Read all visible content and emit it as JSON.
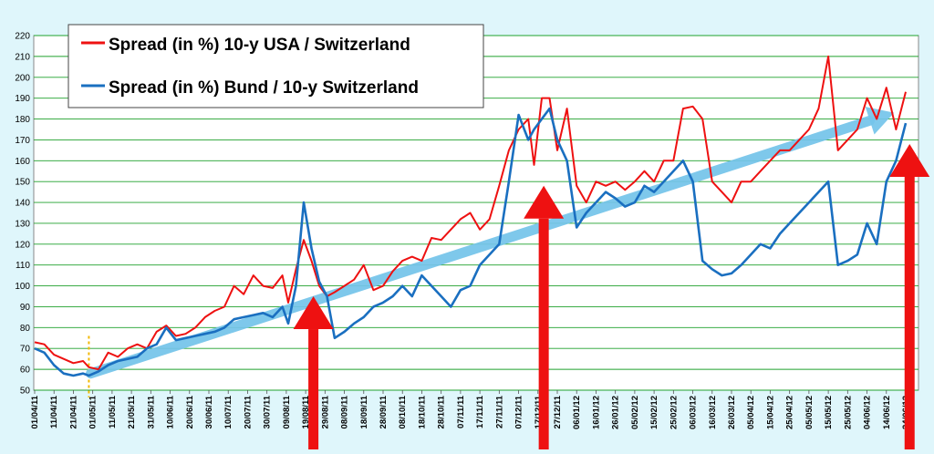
{
  "chart_data": {
    "type": "line",
    "title": "",
    "xlabel": "",
    "ylabel": "",
    "ylim": [
      50,
      220
    ],
    "yticks": [
      50,
      60,
      70,
      80,
      90,
      100,
      110,
      120,
      130,
      140,
      150,
      160,
      170,
      180,
      190,
      200,
      210,
      220
    ],
    "grid": true,
    "legend_position": "top-left",
    "x_tick_labels": [
      "01/04/11",
      "11/04/11",
      "21/04/11",
      "01/05/11",
      "11/05/11",
      "21/05/11",
      "31/05/11",
      "10/06/11",
      "20/06/11",
      "30/06/11",
      "10/07/11",
      "20/07/11",
      "30/07/11",
      "09/08/11",
      "19/08/11",
      "29/08/11",
      "08/09/11",
      "18/09/11",
      "28/09/11",
      "08/10/11",
      "18/10/11",
      "28/10/11",
      "07/11/11",
      "17/11/11",
      "27/11/11",
      "07/12/11",
      "17/12/11",
      "27/12/11",
      "06/01/12",
      "16/01/12",
      "26/01/12",
      "05/02/12",
      "15/02/12",
      "25/02/12",
      "06/03/12",
      "16/03/12",
      "26/03/12",
      "05/04/12",
      "15/04/12",
      "25/04/12",
      "05/05/12",
      "15/05/12",
      "25/05/12",
      "04/06/12",
      "14/06/12",
      "24/06/12"
    ],
    "series": [
      {
        "name": "Spread (in %) 10-y USA / Switzerland",
        "color": "#ee1111",
        "x": [
          "01/04/11",
          "06/04/11",
          "11/04/11",
          "16/04/11",
          "21/04/11",
          "26/04/11",
          "29/04/11",
          "04/05/11",
          "09/05/11",
          "14/05/11",
          "19/05/11",
          "24/05/11",
          "29/05/11",
          "03/06/11",
          "08/06/11",
          "13/06/11",
          "18/06/11",
          "23/06/11",
          "28/06/11",
          "03/07/11",
          "08/07/11",
          "13/07/11",
          "18/07/11",
          "23/07/11",
          "28/07/11",
          "02/08/11",
          "07/08/11",
          "10/08/11",
          "14/08/11",
          "18/08/11",
          "22/08/11",
          "26/08/11",
          "30/08/11",
          "03/09/11",
          "08/09/11",
          "13/09/11",
          "18/09/11",
          "23/09/11",
          "28/09/11",
          "03/10/11",
          "08/10/11",
          "13/10/11",
          "18/10/11",
          "23/10/11",
          "28/10/11",
          "02/11/11",
          "07/11/11",
          "12/11/11",
          "17/11/11",
          "22/11/11",
          "27/11/11",
          "02/12/11",
          "07/12/11",
          "12/12/11",
          "15/12/11",
          "19/12/11",
          "23/12/11",
          "27/12/11",
          "01/01/12",
          "06/01/12",
          "11/01/12",
          "16/01/12",
          "21/01/12",
          "26/01/12",
          "31/01/12",
          "05/02/12",
          "10/02/12",
          "15/02/12",
          "20/02/12",
          "25/02/12",
          "01/03/12",
          "06/03/12",
          "11/03/12",
          "16/03/12",
          "21/03/12",
          "26/03/12",
          "31/03/12",
          "05/04/12",
          "10/04/12",
          "15/04/12",
          "20/04/12",
          "25/04/12",
          "30/04/12",
          "05/05/12",
          "10/05/12",
          "15/05/12",
          "20/05/12",
          "25/05/12",
          "30/05/12",
          "04/06/12",
          "09/06/12",
          "14/06/12",
          "19/06/12",
          "24/06/12"
        ],
        "values": [
          73,
          72,
          67,
          65,
          63,
          64,
          61,
          60,
          68,
          66,
          70,
          72,
          70,
          78,
          81,
          76,
          77,
          80,
          85,
          88,
          90,
          100,
          96,
          105,
          100,
          99,
          105,
          92,
          108,
          122,
          112,
          100,
          95,
          97,
          100,
          103,
          110,
          98,
          100,
          107,
          112,
          114,
          112,
          123,
          122,
          127,
          132,
          135,
          127,
          132,
          148,
          165,
          175,
          180,
          158,
          190,
          190,
          165,
          185,
          148,
          140,
          150,
          148,
          150,
          146,
          150,
          155,
          150,
          160,
          160,
          185,
          186,
          180,
          150,
          145,
          140,
          150,
          150,
          155,
          160,
          165,
          165,
          170,
          175,
          185,
          210,
          165,
          170,
          175,
          190,
          180,
          195,
          175,
          193
        ]
      },
      {
        "name": "Spread (in %) Bund / 10-y Switzerland",
        "color": "#1a6fc0",
        "x": [
          "01/04/11",
          "06/04/11",
          "11/04/11",
          "16/04/11",
          "21/04/11",
          "26/04/11",
          "29/04/11",
          "04/05/11",
          "09/05/11",
          "14/05/11",
          "19/05/11",
          "24/05/11",
          "29/05/11",
          "03/06/11",
          "08/06/11",
          "13/06/11",
          "18/06/11",
          "23/06/11",
          "28/06/11",
          "03/07/11",
          "08/07/11",
          "13/07/11",
          "18/07/11",
          "23/07/11",
          "28/07/11",
          "02/08/11",
          "07/08/11",
          "10/08/11",
          "14/08/11",
          "18/08/11",
          "22/08/11",
          "26/08/11",
          "30/08/11",
          "03/09/11",
          "08/09/11",
          "13/09/11",
          "18/09/11",
          "23/09/11",
          "28/09/11",
          "03/10/11",
          "08/10/11",
          "13/10/11",
          "18/10/11",
          "23/10/11",
          "28/10/11",
          "02/11/11",
          "07/11/11",
          "12/11/11",
          "17/11/11",
          "22/11/11",
          "27/11/11",
          "02/12/11",
          "07/12/11",
          "12/12/11",
          "15/12/11",
          "19/12/11",
          "23/12/11",
          "27/12/11",
          "01/01/12",
          "06/01/12",
          "11/01/12",
          "16/01/12",
          "21/01/12",
          "26/01/12",
          "31/01/12",
          "05/02/12",
          "10/02/12",
          "15/02/12",
          "20/02/12",
          "25/02/12",
          "01/03/12",
          "06/03/12",
          "11/03/12",
          "16/03/12",
          "21/03/12",
          "26/03/12",
          "31/03/12",
          "05/04/12",
          "10/04/12",
          "15/04/12",
          "20/04/12",
          "25/04/12",
          "30/04/12",
          "05/05/12",
          "10/05/12",
          "15/05/12",
          "20/05/12",
          "25/05/12",
          "30/05/12",
          "04/06/12",
          "09/06/12",
          "14/06/12",
          "19/06/12",
          "24/06/12"
        ],
        "values": [
          70,
          68,
          62,
          58,
          57,
          58,
          57,
          59,
          62,
          64,
          65,
          66,
          70,
          72,
          80,
          74,
          75,
          76,
          77,
          78,
          80,
          84,
          85,
          86,
          87,
          85,
          90,
          82,
          100,
          140,
          118,
          102,
          95,
          75,
          78,
          82,
          85,
          90,
          92,
          95,
          100,
          95,
          105,
          100,
          95,
          90,
          98,
          100,
          110,
          115,
          120,
          150,
          182,
          170,
          175,
          180,
          185,
          170,
          160,
          128,
          135,
          140,
          145,
          142,
          138,
          140,
          148,
          145,
          150,
          155,
          160,
          150,
          112,
          108,
          105,
          106,
          110,
          115,
          120,
          118,
          125,
          130,
          135,
          140,
          145,
          150,
          110,
          112,
          115,
          130,
          120,
          150,
          160,
          178
        ]
      }
    ],
    "annotations": {
      "trend_arrow": {
        "from": [
          "30/04/11",
          58
        ],
        "to": [
          "18/06/12",
          183
        ],
        "color": "#74c4ea"
      },
      "vertical_arrows": [
        {
          "x": "23/08/11",
          "top_y": 95,
          "color": "#ee1111"
        },
        {
          "x": "20/12/11",
          "top_y": 148,
          "color": "#ee1111"
        },
        {
          "x": "26/06/12",
          "top_y": 168,
          "color": "#ee1111"
        }
      ],
      "dotted_marker": {
        "x": "29/04/11",
        "color": "#f2b800"
      }
    }
  }
}
